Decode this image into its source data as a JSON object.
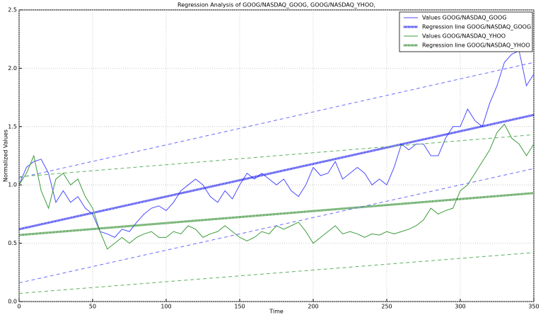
{
  "chart_data": {
    "type": "line",
    "title": "Regression Analysis of GOOG/NASDAQ_GOOG, GOOG/NASDAQ_YHOO,",
    "xlabel": "Time",
    "ylabel": "Normalized Values",
    "xlim": [
      0,
      350
    ],
    "xticks": [
      0,
      50,
      100,
      150,
      200,
      250,
      300,
      350
    ],
    "ylim": [
      0,
      2.5
    ],
    "yticks": [
      {
        "value": 0,
        "label": "0.0"
      },
      0.5,
      {
        "value": 1,
        "label": "1.0"
      },
      1.5,
      {
        "value": 2,
        "label": "2.0"
      },
      2.5
    ],
    "grid": true,
    "legend": "upper right",
    "x": [
      0,
      5,
      10,
      15,
      20,
      25,
      30,
      35,
      40,
      45,
      50,
      55,
      60,
      65,
      70,
      75,
      80,
      85,
      90,
      95,
      100,
      105,
      110,
      115,
      120,
      125,
      130,
      135,
      140,
      145,
      150,
      155,
      160,
      165,
      170,
      175,
      180,
      185,
      190,
      195,
      200,
      205,
      210,
      215,
      220,
      225,
      230,
      235,
      240,
      245,
      250,
      255,
      260,
      265,
      270,
      275,
      280,
      285,
      290,
      295,
      300,
      305,
      310,
      315,
      320,
      325,
      330,
      335,
      340,
      345,
      350
    ],
    "series": [
      {
        "name": "Values GOOG/NASDAQ_GOOG",
        "color": "#4b4bff",
        "style": "solid",
        "values": [
          1.0,
          1.15,
          1.2,
          1.22,
          1.1,
          0.85,
          0.95,
          0.85,
          0.9,
          0.8,
          0.75,
          0.6,
          0.58,
          0.55,
          0.62,
          0.6,
          0.68,
          0.75,
          0.8,
          0.82,
          0.78,
          0.85,
          0.95,
          1.0,
          1.05,
          1.0,
          0.9,
          0.85,
          0.95,
          0.88,
          1.0,
          1.1,
          1.05,
          1.1,
          1.05,
          1.0,
          1.05,
          0.95,
          0.9,
          1.0,
          1.15,
          1.08,
          1.1,
          1.2,
          1.05,
          1.1,
          1.15,
          1.1,
          1.0,
          1.05,
          1.0,
          1.15,
          1.35,
          1.3,
          1.35,
          1.35,
          1.25,
          1.25,
          1.4,
          1.5,
          1.5,
          1.65,
          1.55,
          1.5,
          1.7,
          1.85,
          2.05,
          2.12,
          2.15,
          1.85,
          1.95
        ]
      },
      {
        "name": "Regression line GOOG/NASDAQ_GOOG",
        "color": "#1a1aee",
        "style": "dotted",
        "x": [
          0,
          350
        ],
        "values": [
          0.62,
          1.6
        ]
      },
      {
        "name": "Values GOOG/NASDAQ_YHOO",
        "color": "#3c9c3c",
        "style": "solid",
        "values": [
          1.0,
          1.1,
          1.25,
          0.95,
          0.8,
          1.05,
          1.1,
          1.0,
          1.05,
          0.9,
          0.8,
          0.6,
          0.45,
          0.5,
          0.55,
          0.5,
          0.55,
          0.58,
          0.6,
          0.55,
          0.55,
          0.6,
          0.58,
          0.65,
          0.62,
          0.55,
          0.58,
          0.6,
          0.65,
          0.6,
          0.55,
          0.52,
          0.55,
          0.6,
          0.58,
          0.65,
          0.62,
          0.65,
          0.68,
          0.6,
          0.5,
          0.55,
          0.6,
          0.65,
          0.58,
          0.6,
          0.58,
          0.55,
          0.58,
          0.57,
          0.6,
          0.58,
          0.6,
          0.62,
          0.65,
          0.7,
          0.8,
          0.75,
          0.78,
          0.8,
          0.95,
          1.0,
          1.1,
          1.2,
          1.3,
          1.45,
          1.52,
          1.4,
          1.35,
          1.25,
          1.35
        ]
      },
      {
        "name": "Regression line GOOG/NASDAQ_YHOO",
        "color": "#2a8a2a",
        "style": "dotted",
        "x": [
          0,
          350
        ],
        "values": [
          0.57,
          0.93
        ]
      },
      {
        "color": "#6b6bff",
        "style": "dashed",
        "x": [
          0,
          350
        ],
        "values": [
          1.06,
          2.05
        ]
      },
      {
        "color": "#6b6bff",
        "style": "dashed",
        "x": [
          0,
          350
        ],
        "values": [
          0.16,
          1.14
        ]
      },
      {
        "color": "#5cb05c",
        "style": "dashed",
        "x": [
          0,
          350
        ],
        "values": [
          1.07,
          1.43
        ]
      },
      {
        "color": "#5cb05c",
        "style": "dashed",
        "x": [
          0,
          350
        ],
        "values": [
          0.07,
          0.42
        ]
      }
    ]
  }
}
